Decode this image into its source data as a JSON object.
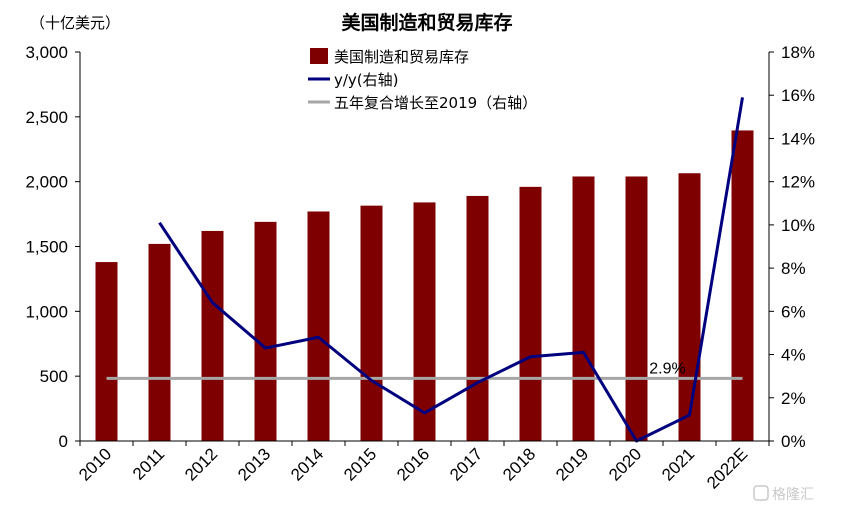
{
  "chart_data": {
    "type": "bar",
    "title": "美国制造和贸易库存",
    "unit_label": "（十亿美元）",
    "categories": [
      "2010",
      "2011",
      "2012",
      "2013",
      "2014",
      "2015",
      "2016",
      "2017",
      "2018",
      "2019",
      "2020",
      "2021",
      "2022E"
    ],
    "series": [
      {
        "name": "美国制造和贸易库存",
        "type": "bar",
        "axis": "left",
        "color": "#7f0000",
        "values": [
          1380,
          1520,
          1620,
          1690,
          1770,
          1815,
          1840,
          1890,
          1960,
          2040,
          2040,
          2065,
          2395
        ]
      },
      {
        "name": "y/y(右轴)",
        "type": "line",
        "axis": "right",
        "color": "#00007f",
        "values": [
          null,
          10.1,
          6.4,
          4.3,
          4.8,
          2.8,
          1.3,
          2.7,
          3.9,
          4.1,
          0.0,
          1.2,
          15.9
        ]
      },
      {
        "name": "五年复合增长至2019（右轴）",
        "type": "line",
        "axis": "right",
        "color": "#a6a6a6",
        "values": [
          2.9,
          2.9,
          2.9,
          2.9,
          2.9,
          2.9,
          2.9,
          2.9,
          2.9,
          2.9,
          2.9,
          2.9,
          2.9
        ]
      }
    ],
    "y_left": {
      "min": 0,
      "max": 3000,
      "ticks": [
        0,
        500,
        1000,
        1500,
        2000,
        2500,
        3000
      ],
      "tick_labels": [
        "0",
        "500",
        "1,000",
        "1,500",
        "2,000",
        "2,500",
        "3,000"
      ]
    },
    "y_right": {
      "min": 0,
      "max": 18,
      "ticks": [
        0,
        2,
        4,
        6,
        8,
        10,
        12,
        14,
        16,
        18
      ],
      "tick_labels": [
        "0%",
        "2%",
        "4%",
        "6%",
        "8%",
        "10%",
        "12%",
        "14%",
        "16%",
        "18%"
      ]
    },
    "annotation": {
      "text": "2.9%",
      "category": "2021",
      "value": 2.9
    },
    "legend_position": "top-center",
    "grid": false
  },
  "watermark": "格隆汇"
}
